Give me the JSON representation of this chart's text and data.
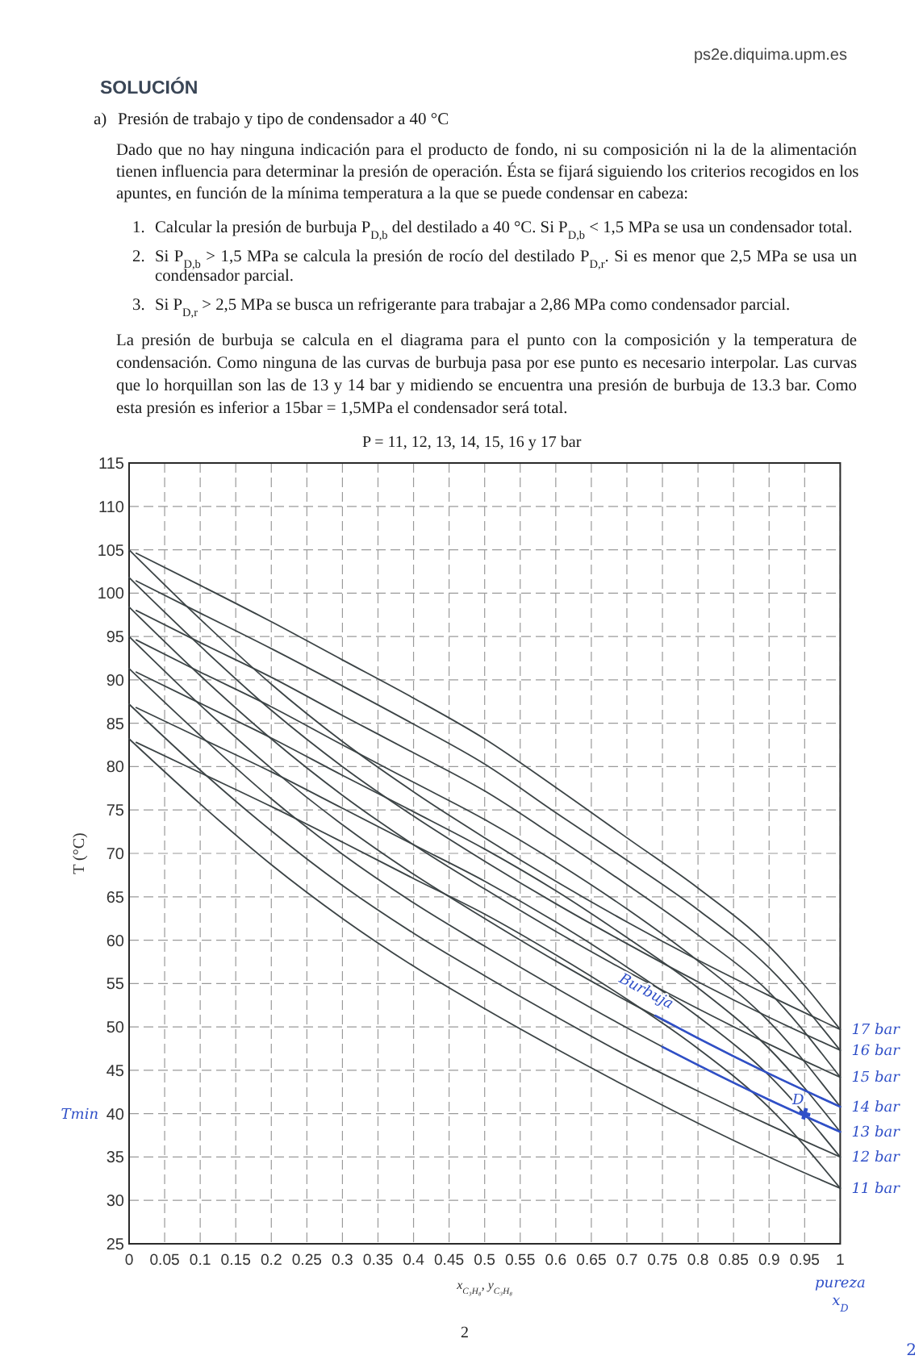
{
  "chart_data": {
    "type": "line",
    "title": "P = 11, 12, 13, 14, 15, 16 y 17 bar",
    "xlabel": "x$_{C₃H₈}$, y$_{C₃H₈}$",
    "ylabel": "T (°C)",
    "xlim": [
      0,
      1
    ],
    "xticks": [
      0,
      0.05,
      0.1,
      0.15,
      0.2,
      0.25,
      0.3,
      0.35,
      0.4,
      0.45,
      0.5,
      0.55,
      0.6,
      0.65,
      0.7,
      0.75,
      0.8,
      0.85,
      0.9,
      0.95,
      1
    ],
    "ylim": [
      25,
      115
    ],
    "yticks": [
      25,
      30,
      35,
      40,
      45,
      50,
      55,
      60,
      65,
      70,
      75,
      80,
      85,
      90,
      95,
      100,
      105,
      110,
      115
    ],
    "grid": true,
    "x": [
      0,
      0.1,
      0.2,
      0.3,
      0.4,
      0.5,
      0.6,
      0.7,
      0.8,
      0.9,
      1
    ],
    "series": [
      {
        "color": "#3c4446",
        "values": [
          105,
          97.0,
          89.5,
          82.9,
          77.1,
          71.8,
          66.8,
          62.1,
          57.7,
          53.6,
          49.7
        ]
      },
      {
        "color": "#3c4446",
        "x": [
          0.01,
          0.1,
          0.2,
          0.3,
          0.4,
          0.5,
          0.6,
          0.7,
          0.8,
          0.9,
          1
        ],
        "values": [
          104.6,
          100.9,
          96.7,
          92.3,
          87.9,
          83.2,
          77.6,
          71.8,
          66.0,
          59.3,
          49.7
        ]
      },
      {
        "color": "#3c4446",
        "values": [
          101.8,
          93.9,
          86.5,
          80.0,
          74.3,
          69.1,
          64.2,
          59.6,
          55.2,
          51.1,
          47.3
        ]
      },
      {
        "color": "#3c4446",
        "x": [
          0.01,
          0.1,
          0.2,
          0.3,
          0.4,
          0.5,
          0.6,
          0.7,
          0.8,
          0.9,
          1
        ],
        "values": [
          101.4,
          97.7,
          93.6,
          89.3,
          84.9,
          80.3,
          74.7,
          69.2,
          63.5,
          56.8,
          47.3
        ]
      },
      {
        "color": "#3c4446",
        "values": [
          98.4,
          90.5,
          83.2,
          76.7,
          71.0,
          65.9,
          61.0,
          56.4,
          52.1,
          48.0,
          44.2
        ]
      },
      {
        "color": "#3c4446",
        "x": [
          0.01,
          0.1,
          0.2,
          0.3,
          0.4,
          0.5,
          0.6,
          0.7,
          0.8,
          0.9,
          1
        ],
        "values": [
          98.0,
          94.3,
          90.3,
          85.9,
          81.6,
          77.2,
          71.9,
          66.4,
          60.6,
          54.0,
          44.2
        ]
      },
      {
        "color": "#3c4446",
        "values": [
          95,
          87.1,
          79.8,
          73.3,
          67.6,
          62.5,
          57.6,
          53.0,
          48.7,
          44.6,
          40.8
        ]
      },
      {
        "color": "#3c4446",
        "x": [
          0.01,
          0.1,
          0.2,
          0.3,
          0.4,
          0.5,
          0.6,
          0.7,
          0.8,
          0.9,
          1
        ],
        "values": [
          94.6,
          90.9,
          86.9,
          82.5,
          78.2,
          73.9,
          69.0,
          63.6,
          57.6,
          50.6,
          40.8
        ]
      },
      {
        "color": "#3c4446",
        "values": [
          91.3,
          83.6,
          76.3,
          69.9,
          64.3,
          59.3,
          54.5,
          49.9,
          45.6,
          41.6,
          37.9
        ]
      },
      {
        "color": "#3c4446",
        "x": [
          0.01,
          0.1,
          0.2,
          0.3,
          0.4,
          0.5,
          0.6,
          0.7,
          0.8,
          0.9,
          1
        ],
        "values": [
          90.9,
          87.3,
          83.3,
          79.0,
          74.8,
          70.5,
          65.7,
          60.3,
          54.5,
          47.5,
          37.9
        ]
      },
      {
        "color": "#3c4446",
        "values": [
          87.2,
          79.6,
          72.6,
          66.3,
          60.8,
          55.9,
          51.2,
          46.7,
          42.6,
          38.7,
          35
        ]
      },
      {
        "color": "#3c4446",
        "x": [
          0.01,
          0.1,
          0.2,
          0.3,
          0.4,
          0.5,
          0.6,
          0.7,
          0.8,
          0.9,
          1
        ],
        "values": [
          86.8,
          83.3,
          79.4,
          75.2,
          71.0,
          66.8,
          62.1,
          56.9,
          51.2,
          44.4,
          35
        ]
      },
      {
        "color": "#3c4446",
        "values": [
          83.2,
          75.7,
          68.7,
          62.5,
          57.0,
          52.1,
          47.5,
          43.1,
          38.9,
          35.0,
          31.4
        ]
      },
      {
        "color": "#3c4446",
        "x": [
          0.01,
          0.1,
          0.2,
          0.3,
          0.4,
          0.5,
          0.6,
          0.7,
          0.8,
          0.9,
          1
        ],
        "values": [
          82.8,
          79.3,
          75.4,
          71.3,
          67.1,
          63.0,
          58.3,
          53.2,
          47.5,
          40.7,
          31.4
        ]
      },
      {
        "color": "#3050c8",
        "x": [
          0.74,
          0.8,
          0.9,
          1
        ],
        "values": [
          51.3,
          48.7,
          44.6,
          40.8
        ]
      },
      {
        "color": "#3050c8",
        "x": [
          0.75,
          0.8,
          0.9,
          1
        ],
        "values": [
          47.7,
          45.6,
          41.6,
          37.9
        ]
      },
      {
        "type": "scatter",
        "color": "#3050c8",
        "marker": "cross",
        "x": [
          0.95
        ],
        "values": [
          40
        ]
      }
    ],
    "annotations": [
      "ps2e.diquima.upm.es",
      "SOLUCIÓN",
      "a) Presión de trabajo y tipo de condensador a 40 °C",
      "Dado que no hay ninguna indicación para el producto de fondo, ni su composición ni la de la alimentación tienen influencia para determinar la presión de operación. Ésta se fijará siguiendo los criterios recogidos en los apuntes, en función de la mínima temperatura a la que se puede condensar en cabeza:",
      "1. Calcular la presión de burbuja P$_{D,b}$ del destilado a 40 °C. Si P$_{D,b}$ < 1,5 MPa se usa un condensador total.",
      "2. Si P$_{D,b}$ > 1,5 MPa se calcula la presión de rocío del destilado P$_{D,r}$. Si es menor que 2,5 MPa se usa un condensador parcial.",
      "3. Si P$_{D,r}$ > 2,5 MPa se busca un refrigerante para trabajar a 2,86 MPa como condensador parcial.",
      "La presión de burbuja se calcula en el diagrama para el punto con la composición y la temperatura de condensación. Como ninguna de las curvas de burbuja pasa por ese punto es necesario interpolar. Las curvas que lo horquillan son las de 13 y 14 bar y midiendo se encuentra una presión de burbuja de 13.3 bar. Como esta presión es inferior a 15bar = 1,5MPa el condensador será total.",
      "2",
      "2",
      "Tmin",
      "pureza x$_{D}$",
      {
        "text": "Burbuja",
        "x": 0.72,
        "y": 53
      },
      {
        "text": "D",
        "x": 0.95,
        "y": 40
      },
      {
        "text": "17 bar",
        "x": 1,
        "y": 49.7
      },
      {
        "text": "16 bar",
        "x": 1,
        "y": 47.3
      },
      {
        "text": "15 bar",
        "x": 1,
        "y": 44.2
      },
      {
        "text": "14 bar",
        "x": 1,
        "y": 40.8
      },
      {
        "text": "13 bar",
        "x": 1,
        "y": 37.9
      },
      {
        "text": "12 bar",
        "x": 1,
        "y": 35
      },
      {
        "text": "11 bar",
        "x": 1,
        "y": 31.4
      }
    ]
  }
}
